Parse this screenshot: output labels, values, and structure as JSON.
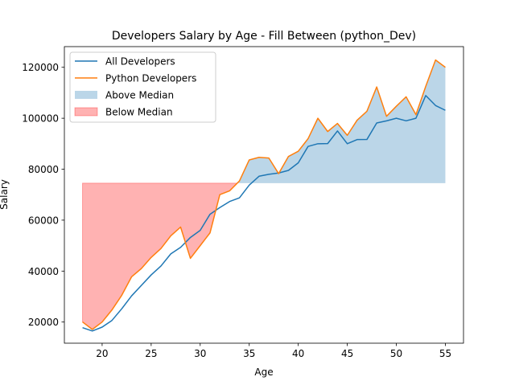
{
  "chart_data": {
    "type": "line",
    "title": "Developers Salary by Age - Fill Between (python_Dev)",
    "xlabel": "Age",
    "ylabel": "Salary",
    "xlim": [
      16.15,
      56.85
    ],
    "ylim": [
      11700,
      128120
    ],
    "x_ticks": [
      20,
      25,
      30,
      35,
      40,
      45,
      50,
      55
    ],
    "y_ticks": [
      20000,
      40000,
      60000,
      80000,
      100000,
      120000
    ],
    "x": [
      18,
      19,
      20,
      21,
      22,
      23,
      24,
      25,
      26,
      27,
      28,
      29,
      30,
      31,
      32,
      33,
      34,
      35,
      36,
      37,
      38,
      39,
      40,
      41,
      42,
      43,
      44,
      45,
      46,
      47,
      48,
      49,
      50,
      51,
      52,
      53,
      54,
      55
    ],
    "median": 74530,
    "legend_position": "upper left",
    "grid": false,
    "series": [
      {
        "name": "All Developers",
        "color": "#1f77b4",
        "values": [
          17784,
          16500,
          18012,
          20628,
          25206,
          30252,
          34368,
          38496,
          42000,
          46752,
          49320,
          53200,
          56000,
          62316,
          64928,
          67317,
          68748,
          73752,
          77232,
          78000,
          78508,
          79536,
          82488,
          88935,
          90000,
          90056,
          95000,
          90000,
          91633,
          91660,
          98150,
          98964,
          100000,
          98988,
          100000,
          108923,
          105000,
          103117
        ]
      },
      {
        "name": "Python Developers",
        "color": "#ff7f0e",
        "values": [
          20046,
          17100,
          20000,
          24744,
          30500,
          37732,
          41000,
          45372,
          48876,
          53850,
          57287,
          45000,
          50000,
          55000,
          70000,
          71496,
          75370,
          83640,
          84666,
          84392,
          78254,
          85000,
          87038,
          91991,
          100000,
          94796,
          97962,
          93302,
          99240,
          102736,
          112285,
          100771,
          104708,
          108423,
          101407,
          112542,
          122870,
          120000
        ]
      }
    ],
    "fills": [
      {
        "name": "Above Median",
        "color": "#1f77b4",
        "alpha": 0.3
      },
      {
        "name": "Below Median",
        "color": "#ff0000",
        "alpha": 0.3
      }
    ]
  }
}
